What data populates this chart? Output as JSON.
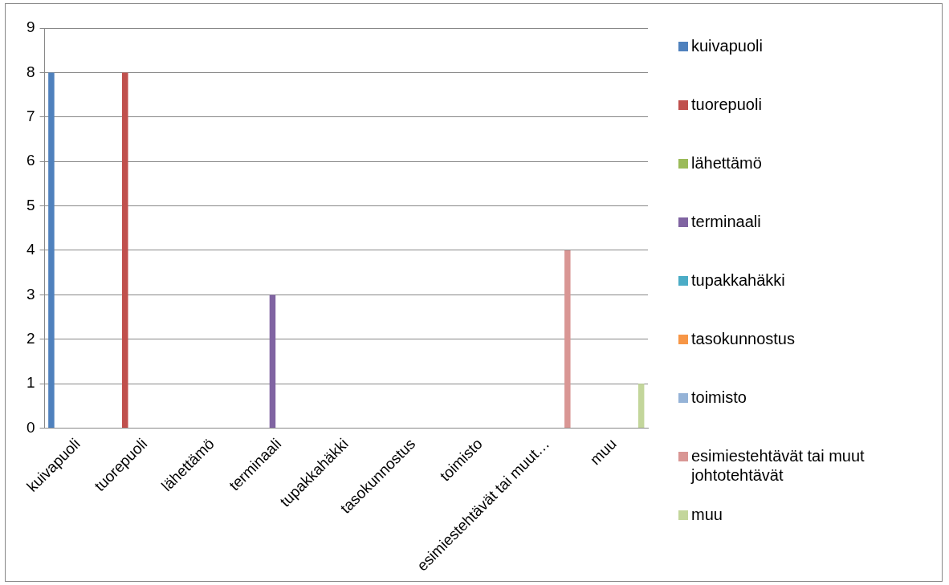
{
  "chart_data": {
    "type": "bar",
    "categories": [
      "kuivapuoli",
      "tuorepuoli",
      "lähettämö",
      "terminaali",
      "tupakkahäkki",
      "tasokunnostus",
      "toimisto",
      "esimiestehtävät tai muut…",
      "muu"
    ],
    "series": [
      {
        "name": "kuivapuoli",
        "color": "#4f81bd",
        "values": [
          8,
          null,
          null,
          null,
          null,
          null,
          null,
          null,
          null
        ]
      },
      {
        "name": "tuorepuoli",
        "color": "#c0504d",
        "values": [
          null,
          8,
          null,
          null,
          null,
          null,
          null,
          null,
          null
        ]
      },
      {
        "name": "lähettämö",
        "color": "#9bbb59",
        "values": [
          null,
          null,
          0,
          null,
          null,
          null,
          null,
          null,
          null
        ]
      },
      {
        "name": "terminaali",
        "color": "#8064a2",
        "values": [
          null,
          null,
          null,
          3,
          null,
          null,
          null,
          null,
          null
        ]
      },
      {
        "name": "tupakkahäkki",
        "color": "#4bacc6",
        "values": [
          null,
          null,
          null,
          null,
          0,
          null,
          null,
          null,
          null
        ]
      },
      {
        "name": "tasokunnostus",
        "color": "#f79646",
        "values": [
          null,
          null,
          null,
          null,
          null,
          0,
          null,
          null,
          null
        ]
      },
      {
        "name": "toimisto",
        "color": "#95b3d7",
        "values": [
          null,
          null,
          null,
          null,
          null,
          null,
          0,
          null,
          null
        ]
      },
      {
        "name": "esimiestehtävät tai muut johtotehtävät",
        "color": "#d99694",
        "values": [
          null,
          null,
          null,
          null,
          null,
          null,
          null,
          4,
          null
        ]
      },
      {
        "name": "muu",
        "color": "#c3d69b",
        "values": [
          null,
          null,
          null,
          null,
          null,
          null,
          null,
          null,
          1
        ]
      }
    ],
    "ylim": [
      0,
      9
    ],
    "yticks": [
      0,
      1,
      2,
      3,
      4,
      5,
      6,
      7,
      8,
      9
    ],
    "grid": "y",
    "legend": "right"
  }
}
